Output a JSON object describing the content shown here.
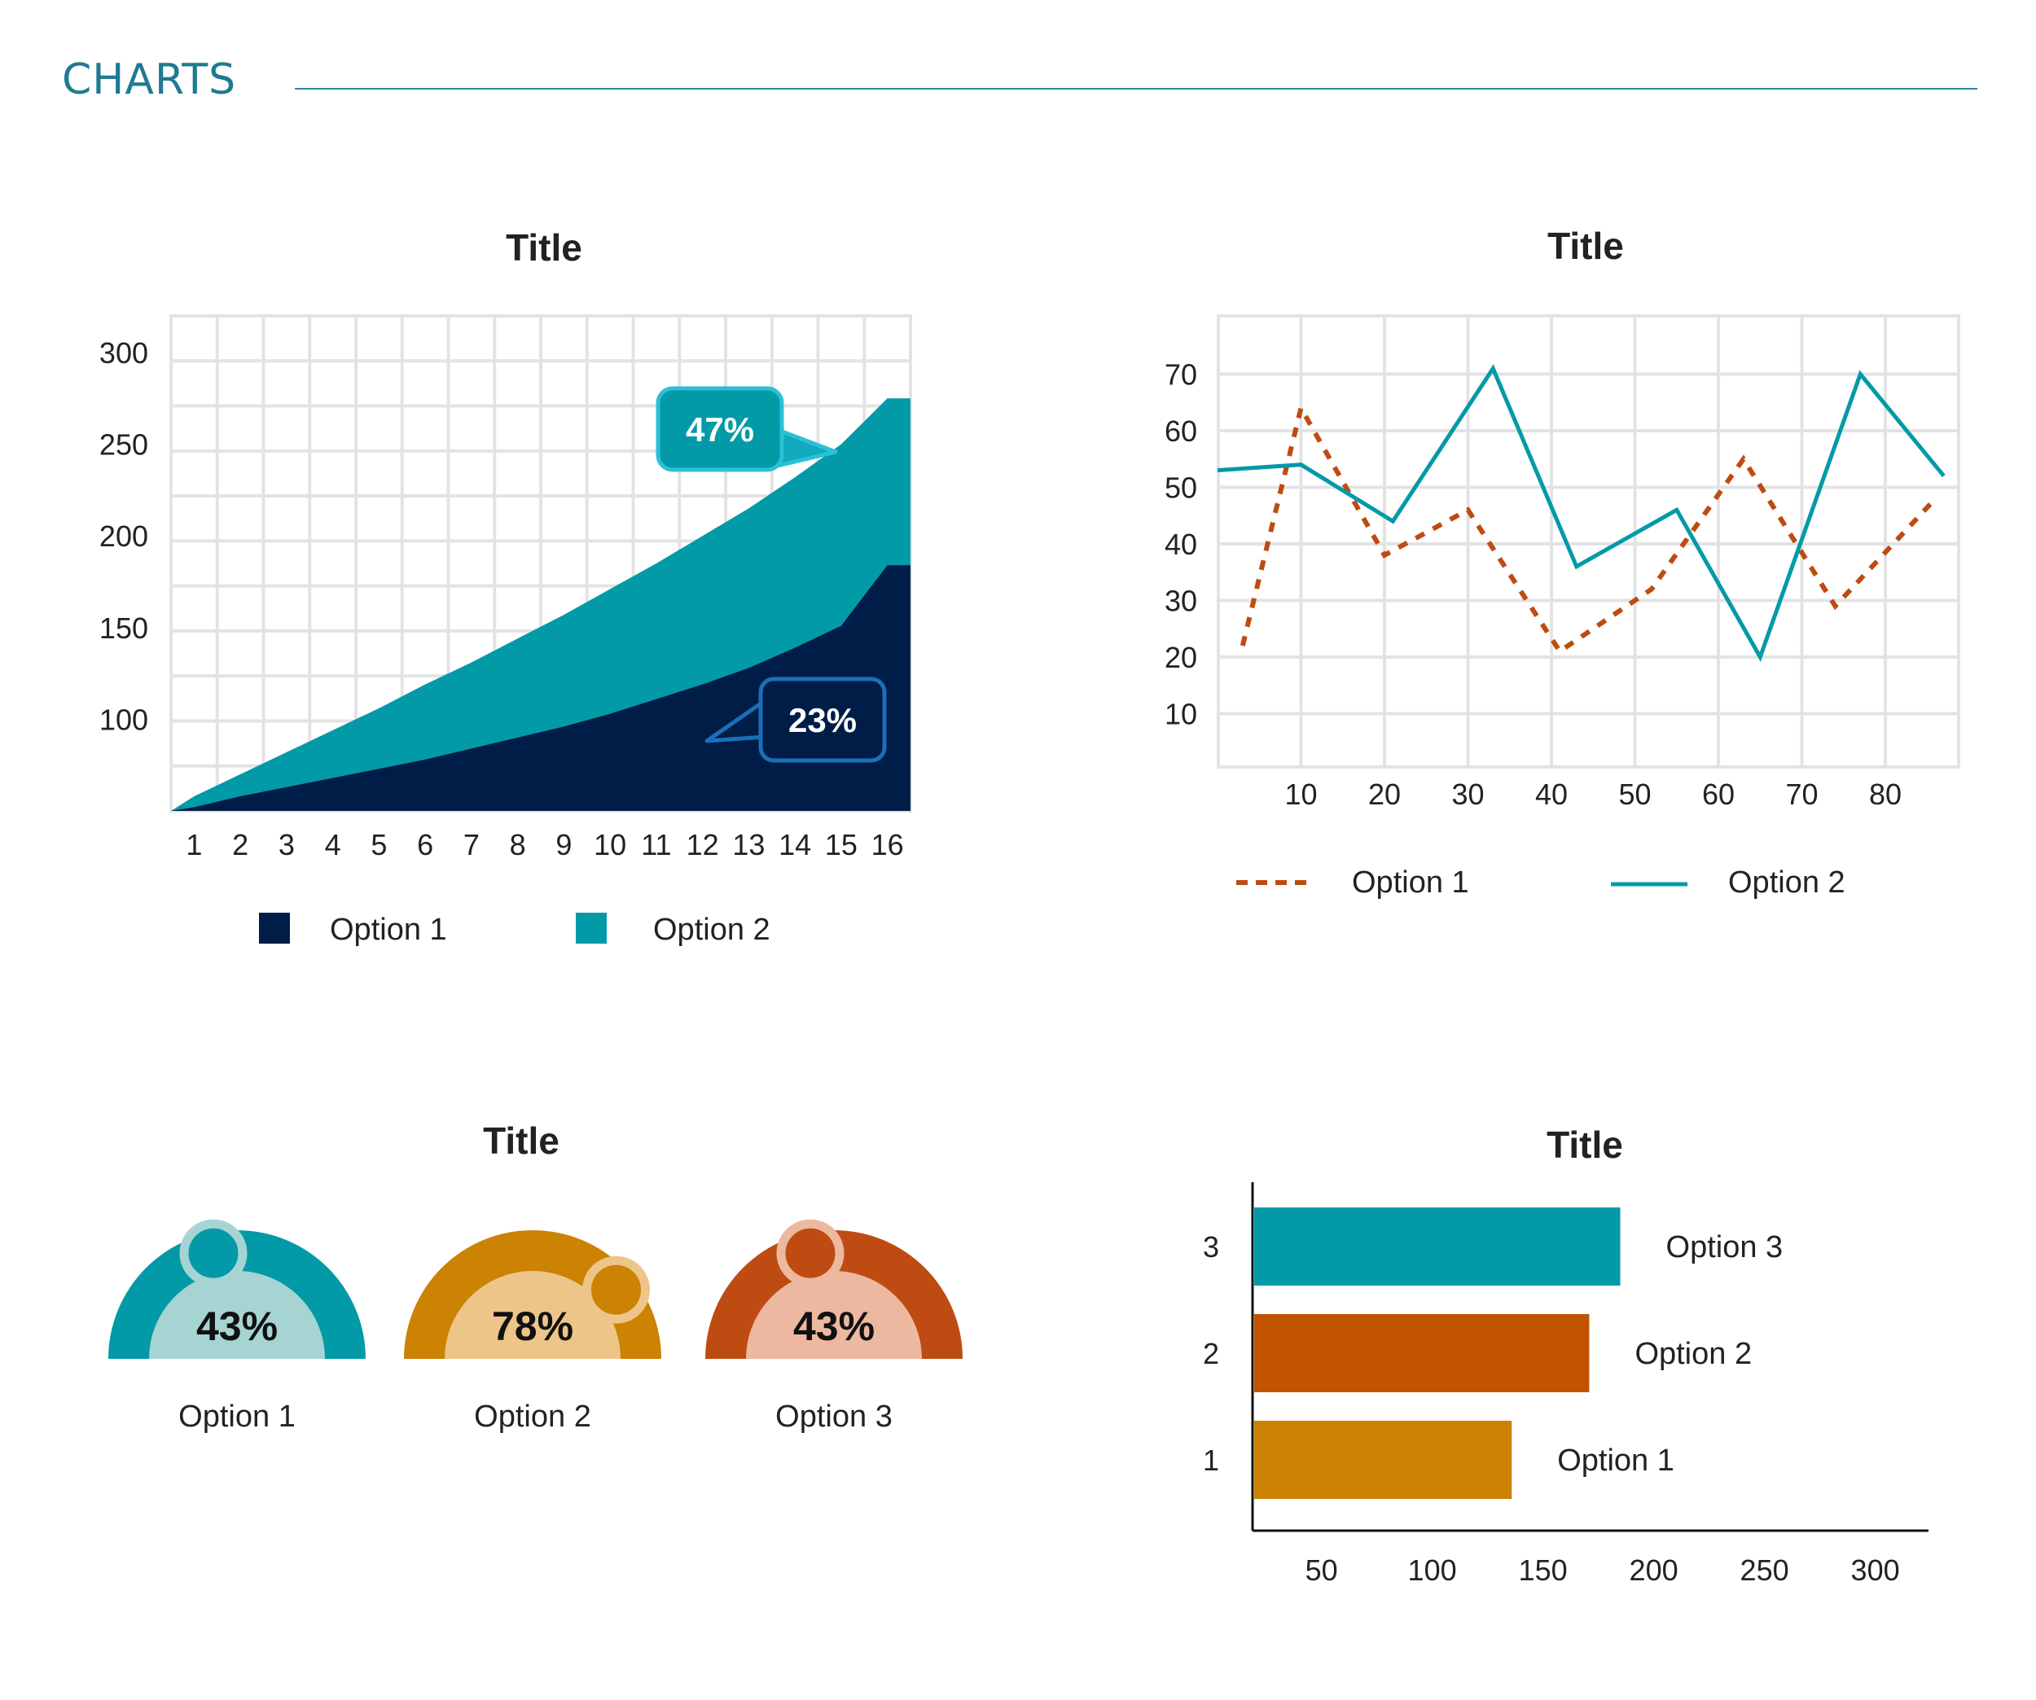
{
  "header": {
    "title": "CHARTS"
  },
  "colors": {
    "navy": "#001d47",
    "teal": "#039aa8",
    "teal_light": "#a6d4d3",
    "gold": "#cc8203",
    "gold_light": "#edc589",
    "rust": "#be4b12",
    "rust_light": "#edb8a0",
    "grid": "#e3e3e6",
    "rule": "#2f8aa0",
    "text": "#222222"
  },
  "chart_data": [
    {
      "id": "area",
      "type": "area",
      "title": "Title",
      "categories": [
        "1",
        "2",
        "3",
        "4",
        "5",
        "6",
        "7",
        "8",
        "9",
        "10",
        "11",
        "12",
        "13",
        "14",
        "15",
        "16"
      ],
      "yticks": [
        100,
        150,
        200,
        250,
        300
      ],
      "ylim": [
        50,
        320
      ],
      "series": [
        {
          "name": "Option 1",
          "color": "#001d47",
          "values": [
            52,
            58,
            63,
            68,
            73,
            78,
            84,
            90,
            96,
            103,
            111,
            119,
            128,
            139,
            151,
            184
          ]
        },
        {
          "name": "Option 2",
          "color": "#039aa8",
          "values": [
            58,
            70,
            82,
            94,
            106,
            119,
            131,
            144,
            157,
            171,
            185,
            200,
            215,
            232,
            250,
            275
          ]
        }
      ],
      "callouts": [
        {
          "label": "47%",
          "series": "Option 2"
        },
        {
          "label": "23%",
          "series": "Option 1"
        }
      ],
      "grid": true
    },
    {
      "id": "line",
      "type": "line",
      "title": "Title",
      "xticks": [
        10,
        20,
        30,
        40,
        50,
        60,
        70,
        80
      ],
      "yticks": [
        10,
        20,
        30,
        40,
        50,
        60,
        70
      ],
      "xlim": [
        0,
        90
      ],
      "ylim": [
        0,
        81
      ],
      "series": [
        {
          "name": "Option 1",
          "style": "dashed",
          "color": "#be4b12",
          "x": [
            3,
            10,
            20,
            30,
            41,
            52,
            63,
            74,
            86
          ],
          "y": [
            22,
            64,
            38,
            46,
            21,
            32,
            55,
            29,
            48
          ]
        },
        {
          "name": "Option 2",
          "style": "solid",
          "color": "#039aa8",
          "x": [
            0,
            10,
            21,
            33,
            43,
            55,
            65,
            77,
            87
          ],
          "y": [
            53,
            54,
            44,
            71,
            36,
            46,
            20,
            70,
            52
          ]
        }
      ],
      "grid": true
    },
    {
      "id": "gauges",
      "type": "gauge",
      "title": "Title",
      "items": [
        {
          "label": "Option 1",
          "value": 43,
          "display": "43%",
          "color": "#039aa8",
          "light": "#a6d4d3"
        },
        {
          "label": "Option 2",
          "value": 78,
          "display": "78%",
          "color": "#cc8203",
          "light": "#edc589"
        },
        {
          "label": "Option 3",
          "value": 43,
          "display": "43%",
          "color": "#be4b12",
          "light": "#edb8a0"
        }
      ]
    },
    {
      "id": "hbar",
      "type": "bar",
      "orientation": "horizontal",
      "title": "Title",
      "categories": [
        "1",
        "2",
        "3"
      ],
      "values": [
        137,
        172,
        186
      ],
      "labels": [
        "Option 1",
        "Option 2",
        "Option 3"
      ],
      "colors": [
        "#cc8203",
        "#c25300",
        "#039aa8"
      ],
      "xticks": [
        50,
        100,
        150,
        200,
        250,
        300
      ],
      "xlim": [
        20,
        325
      ]
    }
  ]
}
